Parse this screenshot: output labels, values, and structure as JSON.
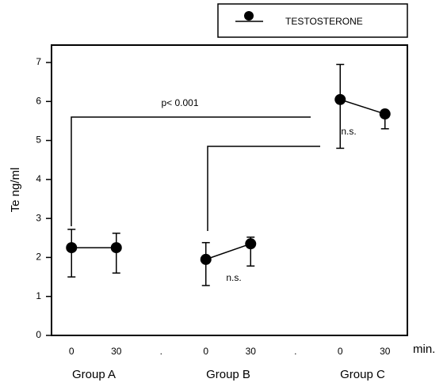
{
  "chart_data": {
    "type": "scatter",
    "y_label": "Te ng/ml",
    "x_unit": "min.",
    "categories": [
      "0",
      "30",
      ".",
      "0",
      "30",
      ".",
      "0",
      "30"
    ],
    "groups": [
      "Group A",
      "Group B",
      "Group C"
    ],
    "series": [
      {
        "name": "TESTOSTERONE",
        "color": "#000000",
        "values": [
          2.25,
          2.25,
          null,
          1.95,
          2.35,
          null,
          6.05,
          5.68
        ],
        "lower": [
          1.5,
          1.6,
          null,
          1.28,
          1.78,
          null,
          4.8,
          5.3
        ],
        "upper": [
          2.72,
          2.62,
          null,
          2.38,
          2.52,
          null,
          6.95,
          5.75
        ]
      }
    ],
    "ylim": [
      0,
      7
    ],
    "yticks": [
      0,
      1,
      2,
      3,
      4,
      5,
      6,
      7
    ],
    "annotations": [
      "p< 0.001",
      "n.s.",
      "n.s."
    ],
    "legend": "top-right"
  }
}
